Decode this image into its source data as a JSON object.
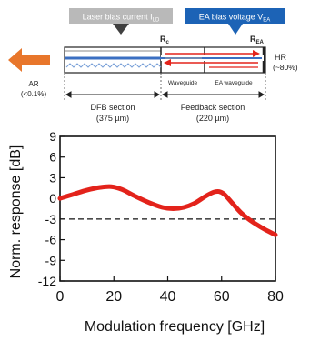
{
  "diagram": {
    "laser_bias_label": "Laser bias current I",
    "laser_bias_sub": "LD",
    "ea_bias_label": "EA bias voltage V",
    "ea_bias_sub": "EA",
    "rc_label": "R",
    "rc_sub": "c",
    "rea_label": "R",
    "rea_sub": "EA",
    "hr_label": "HR",
    "hr_pct": "(~80%)",
    "ar_label": "AR",
    "ar_pct": "(<0.1%)",
    "waveguide_label": "Waveguide",
    "ea_waveguide_label": "EA waveguide",
    "dfb_section_label": "DFB section",
    "dfb_section_len": "(375 µm)",
    "feedback_section_label": "Feedback section",
    "feedback_section_len": "(220 µm)",
    "colors": {
      "ld_box": "#b9b9b9",
      "ea_box": "#1c63b6",
      "arrow_orange": "#e8762b",
      "arrow_red": "#e3231b",
      "waveguide_blue": "#3b6fc2"
    }
  },
  "chart_data": {
    "type": "line",
    "xlabel": "Modulation frequency [GHz]",
    "ylabel": "Norm. response [dB]",
    "xlim": [
      0,
      80
    ],
    "ylim": [
      -12,
      9
    ],
    "xticks": [
      0,
      20,
      40,
      60,
      80
    ],
    "yticks": [
      9,
      6,
      3,
      0,
      -3,
      -6,
      -9,
      -12
    ],
    "ytick_labels": [
      "9",
      "6",
      "3",
      "0",
      "-3",
      "-6",
      "-9",
      "-12"
    ],
    "xtick_labels": [
      "0",
      "20",
      "40",
      "60",
      "80"
    ],
    "series": [
      {
        "color": "#e3231b",
        "x": [
          0,
          5,
          10,
          15,
          19,
          23,
          28,
          33,
          38,
          42,
          46,
          50,
          54,
          57,
          59,
          61,
          64,
          67,
          70,
          73,
          76,
          80
        ],
        "y": [
          0,
          0.6,
          1.2,
          1.6,
          1.7,
          1.3,
          0.3,
          -0.6,
          -1.3,
          -1.5,
          -1.3,
          -0.7,
          0.3,
          0.9,
          1.0,
          0.6,
          -0.7,
          -2.0,
          -3.0,
          -3.8,
          -4.5,
          -5.3
        ]
      }
    ],
    "reference_line": {
      "y": -3,
      "style": "dashed"
    },
    "grid": false
  }
}
